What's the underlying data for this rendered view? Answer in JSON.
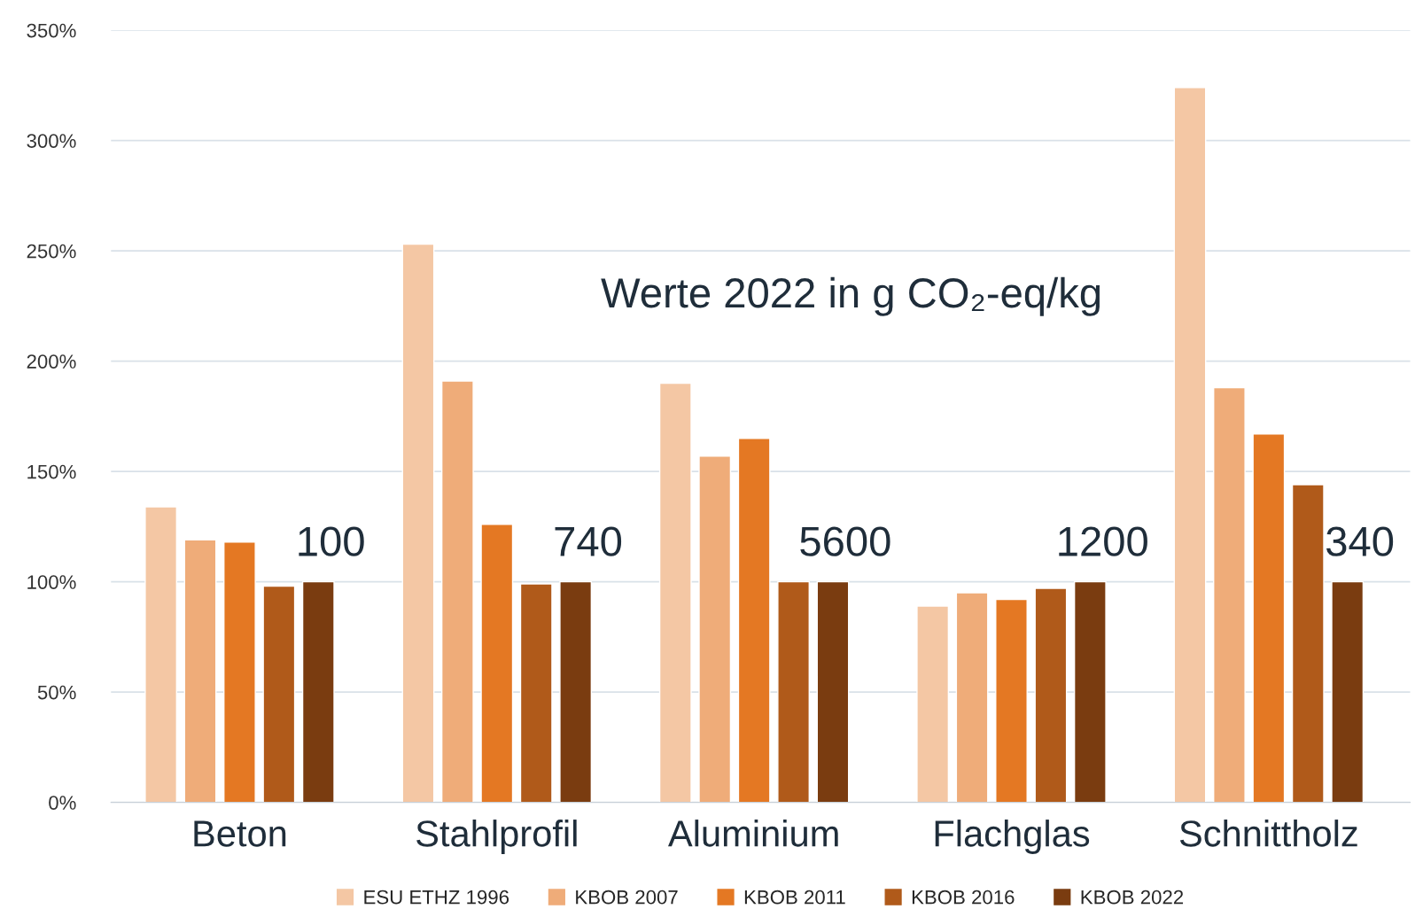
{
  "chart_data": {
    "type": "bar",
    "categories": [
      "Beton",
      "Stahlprofil",
      "Aluminium",
      "Flachglas",
      "Schnittholz"
    ],
    "series": [
      {
        "name": "ESU ETHZ 1996",
        "color": "#f4c7a4",
        "values": [
          134,
          253,
          190,
          89,
          324
        ]
      },
      {
        "name": "KBOB 2007",
        "color": "#efac79",
        "values": [
          119,
          191,
          157,
          95,
          188
        ]
      },
      {
        "name": "KBOB 2011",
        "color": "#e47823",
        "values": [
          118,
          126,
          165,
          92,
          167
        ]
      },
      {
        "name": "KBOB 2016",
        "color": "#b05a1a",
        "values": [
          98,
          99,
          100,
          97,
          144
        ]
      },
      {
        "name": "KBOB 2022",
        "color": "#7a3c10",
        "values": [
          100,
          100,
          100,
          100,
          100
        ]
      }
    ],
    "ylim": [
      0,
      350
    ],
    "yticks": [
      {
        "value": 0,
        "label": "0%"
      },
      {
        "value": 50,
        "label": "50%"
      },
      {
        "value": 100,
        "label": "100%"
      },
      {
        "value": 150,
        "label": "150%"
      },
      {
        "value": 200,
        "label": "200%"
      },
      {
        "value": 250,
        "label": "250%"
      },
      {
        "value": 300,
        "label": "300%"
      },
      {
        "value": 350,
        "label": "350%"
      }
    ],
    "grid": "y",
    "legend": "bottom",
    "annotations": [
      "Werte 2022 in g CO₂-eq/kg",
      "100",
      "740",
      "5600",
      "1200",
      "340"
    ]
  }
}
